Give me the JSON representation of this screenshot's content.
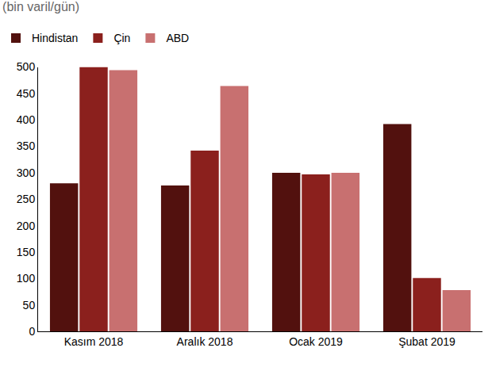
{
  "chart_data": {
    "type": "bar",
    "title": "(bin varil/gün)",
    "categories": [
      "Kasım 2018",
      "Aralık 2018",
      "Ocak 2019",
      "Şubat 2019"
    ],
    "series": [
      {
        "name": "Hindistan",
        "color": "#52110e",
        "values": [
          280,
          276,
          300,
          392
        ]
      },
      {
        "name": "Çin",
        "color": "#8b201d",
        "values": [
          500,
          342,
          297,
          101
        ]
      },
      {
        "name": "ABD",
        "color": "#c87070",
        "values": [
          494,
          464,
          300,
          78
        ]
      }
    ],
    "ylim": [
      0,
      500
    ],
    "yticks": [
      0,
      50,
      100,
      150,
      200,
      250,
      300,
      350,
      400,
      450,
      500
    ],
    "grid": false,
    "legend": "top-left"
  }
}
